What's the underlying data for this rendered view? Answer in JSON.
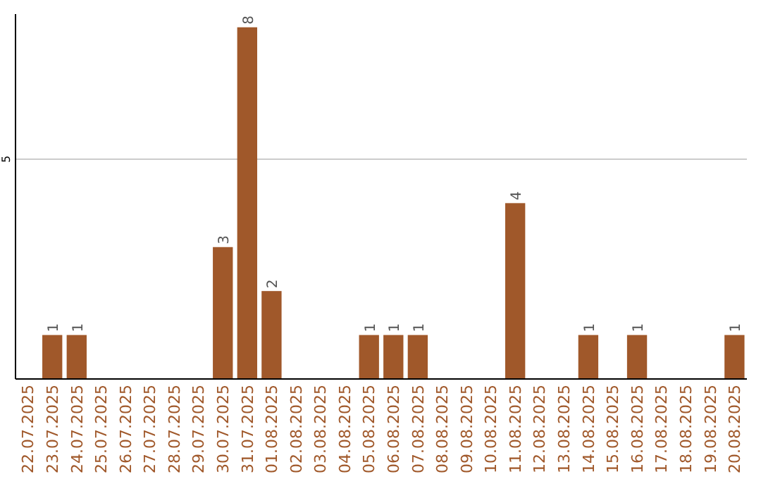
{
  "chart_data": {
    "type": "bar",
    "categories": [
      "22.07.2025",
      "23.07.2025",
      "24.07.2025",
      "25.07.2025",
      "26.07.2025",
      "27.07.2025",
      "28.07.2025",
      "29.07.2025",
      "30.07.2025",
      "31.07.2025",
      "01.08.2025",
      "02.08.2025",
      "03.08.2025",
      "04.08.2025",
      "05.08.2025",
      "06.08.2025",
      "07.08.2025",
      "08.08.2025",
      "09.08.2025",
      "10.08.2025",
      "11.08.2025",
      "12.08.2025",
      "13.08.2025",
      "14.08.2025",
      "15.08.2025",
      "16.08.2025",
      "17.08.2025",
      "18.08.2025",
      "19.08.2025",
      "20.08.2025"
    ],
    "values": [
      0,
      1,
      1,
      0,
      0,
      0,
      0,
      0,
      3,
      8,
      2,
      0,
      0,
      0,
      1,
      1,
      1,
      0,
      0,
      0,
      4,
      0,
      0,
      1,
      0,
      1,
      0,
      0,
      0,
      1
    ],
    "value_labels": [
      null,
      "1",
      "1",
      null,
      null,
      null,
      null,
      null,
      "3",
      "8",
      "2",
      null,
      null,
      null,
      "1",
      "1",
      "1",
      null,
      null,
      null,
      "4",
      null,
      null,
      "1",
      null,
      "1",
      null,
      null,
      null,
      "1"
    ],
    "color": "#a0582a",
    "ylim": [
      0,
      8.3
    ],
    "yticks": [
      5
    ],
    "grid": "y"
  }
}
